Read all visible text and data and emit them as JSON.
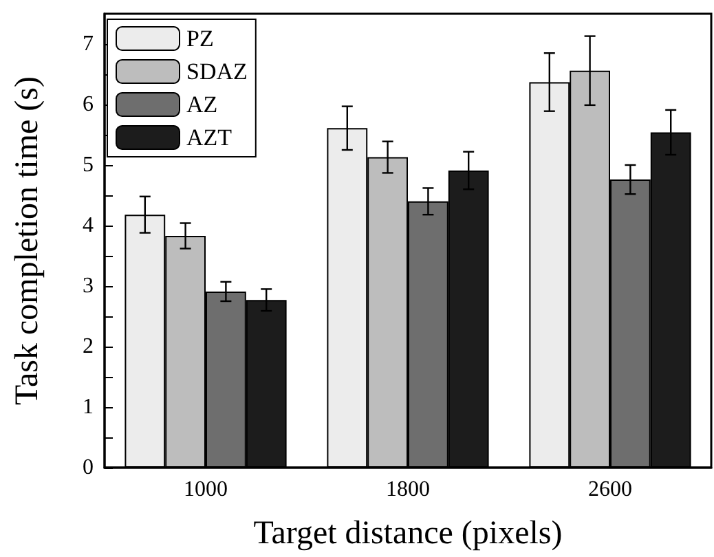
{
  "chart_data": {
    "type": "bar",
    "xlabel": "Target distance (pixels)",
    "ylabel": "Task completion time (s)",
    "categories": [
      "1000",
      "1800",
      "2600"
    ],
    "series": [
      {
        "name": "PZ",
        "color": "#ececec",
        "values": [
          4.18,
          5.61,
          6.37
        ],
        "errors": [
          0.3,
          0.36,
          0.48
        ]
      },
      {
        "name": "SDAZ",
        "color": "#bdbdbd",
        "values": [
          3.83,
          5.13,
          6.56
        ],
        "errors": [
          0.21,
          0.26,
          0.57
        ]
      },
      {
        "name": "AZ",
        "color": "#6e6e6e",
        "values": [
          2.91,
          4.4,
          4.76
        ],
        "errors": [
          0.16,
          0.22,
          0.24
        ]
      },
      {
        "name": "AZT",
        "color": "#1c1c1c",
        "values": [
          2.77,
          4.91,
          5.54
        ],
        "errors": [
          0.18,
          0.31,
          0.37
        ]
      }
    ],
    "ylim": [
      0,
      7.5
    ],
    "yticks": [
      0,
      {
        "value": 0.5,
        "label": null
      },
      1,
      {
        "value": 1.5,
        "label": null
      },
      2,
      {
        "value": 2.5,
        "label": null
      },
      3,
      {
        "value": 3.5,
        "label": null
      },
      4,
      {
        "value": 4.5,
        "label": null
      },
      5,
      {
        "value": 5.5,
        "label": null
      },
      6,
      {
        "value": 6.5,
        "label": null
      },
      7
    ],
    "legend": "top left",
    "grid": false
  }
}
